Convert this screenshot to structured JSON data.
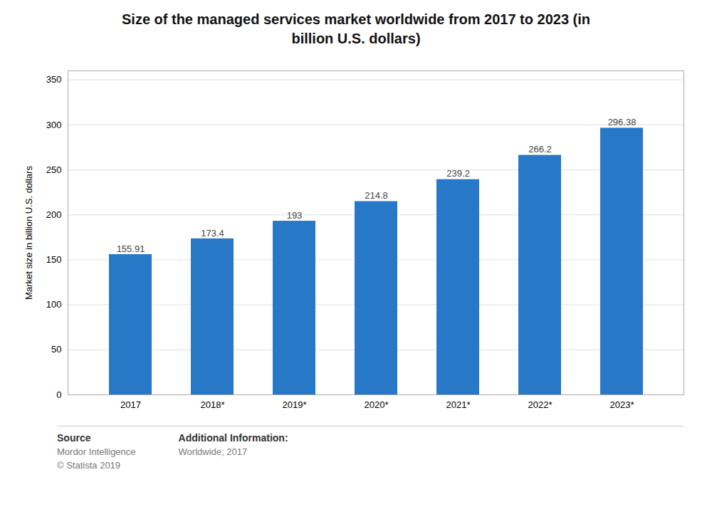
{
  "chart_data": {
    "type": "bar",
    "title": "Size of the managed services market worldwide from 2017 to 2023 (in\nbillion U.S. dollars)",
    "categories": [
      "2017",
      "2018*",
      "2019*",
      "2020*",
      "2021*",
      "2022*",
      "2023*"
    ],
    "values": [
      155.91,
      173.4,
      193,
      214.8,
      239.2,
      266.2,
      296.38
    ],
    "color": "#2878c8",
    "ylabel": "Market size in billion U.S. dollars",
    "ylim": [
      0,
      360
    ],
    "yticks": [
      0,
      50,
      100,
      150,
      200,
      250,
      300,
      350
    ],
    "grid": true,
    "data_labels": true,
    "annotations": [
      [
        "Source",
        "Mordor Intelligence",
        "© Statista 2019"
      ],
      [
        "Additional Information:",
        "Worldwide; 2017"
      ]
    ]
  }
}
